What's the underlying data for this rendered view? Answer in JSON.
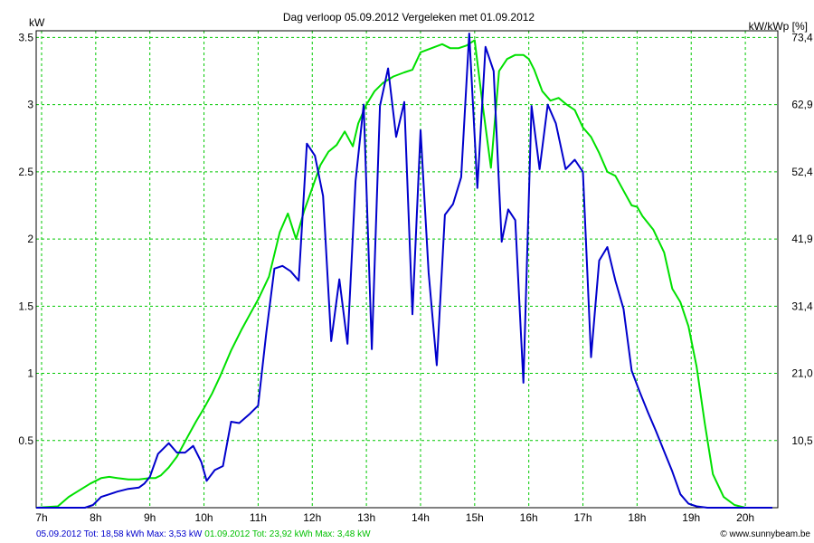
{
  "chart_data": {
    "type": "line",
    "title": "Dag  verloop 05.09.2012   Vergeleken met 01.09.2012",
    "ylabel_left": "kW",
    "ylabel_right": "kW/kWp [%]",
    "xlim": [
      6.9,
      20.6
    ],
    "ylim": [
      0,
      3.55
    ],
    "grid": true,
    "x_ticks": [
      {
        "v": 7,
        "label": "7h"
      },
      {
        "v": 8,
        "label": "8h"
      },
      {
        "v": 9,
        "label": "9h"
      },
      {
        "v": 10,
        "label": "10h"
      },
      {
        "v": 11,
        "label": "11h"
      },
      {
        "v": 12,
        "label": "12h"
      },
      {
        "v": 13,
        "label": "13h"
      },
      {
        "v": 14,
        "label": "14h"
      },
      {
        "v": 15,
        "label": "15h"
      },
      {
        "v": 16,
        "label": "16h"
      },
      {
        "v": 17,
        "label": "17h"
      },
      {
        "v": 18,
        "label": "18h"
      },
      {
        "v": 19,
        "label": "19h"
      },
      {
        "v": 20,
        "label": "20h"
      }
    ],
    "y_ticks_left": [
      {
        "v": 0.5,
        "label": "0.5"
      },
      {
        "v": 1,
        "label": "1"
      },
      {
        "v": 1.5,
        "label": "1.5"
      },
      {
        "v": 2,
        "label": "2"
      },
      {
        "v": 2.5,
        "label": "2.5"
      },
      {
        "v": 3,
        "label": "3"
      },
      {
        "v": 3.5,
        "label": "3.5"
      }
    ],
    "y_ticks_right": [
      {
        "v": 0.5,
        "label": "10,5"
      },
      {
        "v": 1,
        "label": "21,0"
      },
      {
        "v": 1.5,
        "label": "31,4"
      },
      {
        "v": 2,
        "label": "41,9"
      },
      {
        "v": 2.5,
        "label": "52,4"
      },
      {
        "v": 3,
        "label": "62,9"
      },
      {
        "v": 3.5,
        "label": "73,4"
      }
    ],
    "series": [
      {
        "color": "#00e000",
        "x": [
          6.9,
          7.3,
          7.5,
          7.7,
          7.9,
          8.1,
          8.25,
          8.4,
          8.6,
          8.8,
          9.0,
          9.1,
          9.2,
          9.35,
          9.5,
          9.7,
          9.85,
          10.0,
          10.15,
          10.3,
          10.5,
          10.7,
          10.85,
          11.0,
          11.2,
          11.4,
          11.55,
          11.7,
          11.85,
          12.0,
          12.15,
          12.3,
          12.45,
          12.6,
          12.75,
          12.85,
          13.0,
          13.15,
          13.3,
          13.5,
          13.7,
          13.85,
          14.0,
          14.2,
          14.4,
          14.55,
          14.7,
          14.85,
          15.0,
          15.15,
          15.3,
          15.45,
          15.6,
          15.75,
          15.9,
          16.0,
          16.1,
          16.25,
          16.4,
          16.55,
          16.7,
          16.85,
          17.0,
          17.15,
          17.3,
          17.45,
          17.6,
          17.75,
          17.9,
          18.0,
          18.1,
          18.3,
          18.5,
          18.65,
          18.8,
          18.95,
          19.1,
          19.25,
          19.4,
          19.6,
          19.8,
          20.0,
          20.2,
          20.4
        ],
        "y": [
          0.0,
          0.01,
          0.08,
          0.13,
          0.18,
          0.22,
          0.23,
          0.22,
          0.21,
          0.21,
          0.22,
          0.22,
          0.24,
          0.3,
          0.38,
          0.53,
          0.64,
          0.74,
          0.85,
          0.98,
          1.17,
          1.33,
          1.44,
          1.55,
          1.72,
          2.05,
          2.19,
          2.0,
          2.21,
          2.38,
          2.55,
          2.65,
          2.7,
          2.8,
          2.69,
          2.86,
          3.0,
          3.1,
          3.16,
          3.21,
          3.24,
          3.26,
          3.39,
          3.42,
          3.45,
          3.42,
          3.42,
          3.44,
          3.48,
          2.99,
          2.53,
          3.25,
          3.34,
          3.37,
          3.37,
          3.34,
          3.26,
          3.1,
          3.03,
          3.05,
          3.0,
          2.96,
          2.83,
          2.76,
          2.64,
          2.5,
          2.47,
          2.36,
          2.25,
          2.24,
          2.17,
          2.07,
          1.9,
          1.63,
          1.53,
          1.35,
          1.05,
          0.63,
          0.25,
          0.08,
          0.02,
          0.0,
          0.0,
          0.0
        ]
      },
      {
        "color": "#0000cc",
        "x": [
          6.9,
          7.3,
          7.6,
          7.8,
          7.95,
          8.1,
          8.25,
          8.4,
          8.6,
          8.8,
          8.9,
          9.0,
          9.15,
          9.35,
          9.5,
          9.65,
          9.8,
          9.95,
          10.05,
          10.2,
          10.35,
          10.5,
          10.65,
          10.85,
          11.0,
          11.15,
          11.3,
          11.45,
          11.6,
          11.75,
          11.9,
          12.05,
          12.2,
          12.35,
          12.5,
          12.65,
          12.8,
          12.95,
          13.1,
          13.25,
          13.4,
          13.55,
          13.7,
          13.85,
          14.0,
          14.15,
          14.3,
          14.45,
          14.6,
          14.75,
          14.9,
          15.05,
          15.2,
          15.35,
          15.5,
          15.62,
          15.75,
          15.9,
          16.05,
          16.2,
          16.35,
          16.5,
          16.68,
          16.85,
          17.0,
          17.15,
          17.3,
          17.45,
          17.6,
          17.75,
          17.9,
          18.05,
          18.2,
          18.35,
          18.5,
          18.65,
          18.8,
          18.95,
          19.1,
          19.3,
          19.5,
          19.7,
          19.9,
          20.1,
          20.3,
          20.5
        ],
        "y": [
          0.0,
          0.0,
          0.0,
          0.0,
          0.02,
          0.08,
          0.1,
          0.12,
          0.14,
          0.15,
          0.18,
          0.23,
          0.4,
          0.48,
          0.41,
          0.41,
          0.46,
          0.34,
          0.2,
          0.28,
          0.31,
          0.64,
          0.63,
          0.7,
          0.76,
          1.3,
          1.78,
          1.8,
          1.76,
          1.69,
          2.71,
          2.62,
          2.32,
          1.24,
          1.7,
          1.22,
          2.43,
          3.0,
          1.18,
          2.99,
          3.27,
          2.76,
          3.02,
          1.44,
          2.81,
          1.75,
          1.06,
          2.18,
          2.26,
          2.46,
          3.53,
          2.38,
          3.43,
          3.25,
          1.98,
          2.22,
          2.14,
          0.93,
          2.99,
          2.52,
          3.0,
          2.86,
          2.52,
          2.59,
          2.5,
          1.12,
          1.84,
          1.94,
          1.69,
          1.48,
          1.02,
          0.86,
          0.71,
          0.57,
          0.42,
          0.27,
          0.1,
          0.03,
          0.01,
          0.0,
          0.0,
          0.0,
          0.0,
          0.0,
          0.0,
          0.0
        ]
      }
    ],
    "summary_text": {
      "blue": "05.09.2012 Tot: 18,58 kWh Max: 3,53 kW",
      "green": "01.09.2012 Tot: 23,92 kWh Max: 3,48 kW"
    },
    "copyright": "© www.sunnybeam.be"
  }
}
